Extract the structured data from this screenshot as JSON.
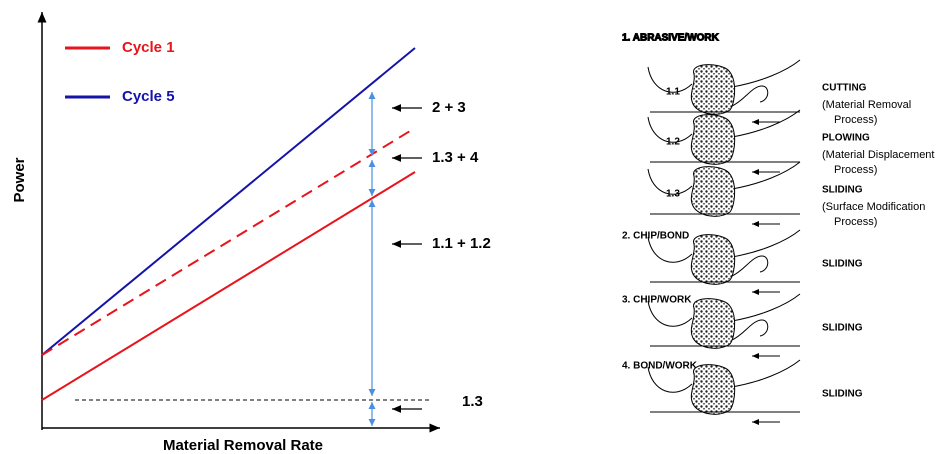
{
  "chart": {
    "y_label": "Power",
    "x_label": "Material Removal Rate",
    "legend": [
      {
        "name": "Cycle 1",
        "color": "#e8141c"
      },
      {
        "name": "Cycle 5",
        "color": "#1414a8"
      }
    ],
    "annotations": [
      "2 + 3",
      "1.3 + 4",
      "1.1 + 1.2",
      "1.3"
    ]
  },
  "panel": {
    "title": "1. ABRASIVE/WORK",
    "stages": [
      {
        "label": "1.1",
        "mode": "CUTTING",
        "detail": [
          "(Material Removal",
          "Process)"
        ]
      },
      {
        "label": "1.2",
        "mode": "PLOWING",
        "detail": [
          "(Material Displacement",
          "Process)"
        ]
      },
      {
        "label": "1.3",
        "mode": "SLIDING",
        "detail": [
          "(Surface Modification",
          "Process)"
        ]
      }
    ],
    "groups": [
      {
        "title": "2. CHIP/BOND",
        "mode": "SLIDING"
      },
      {
        "title": "3. CHIP/WORK",
        "mode": "SLIDING"
      },
      {
        "title": "4. BOND/WORK",
        "mode": "SLIDING"
      }
    ]
  }
}
